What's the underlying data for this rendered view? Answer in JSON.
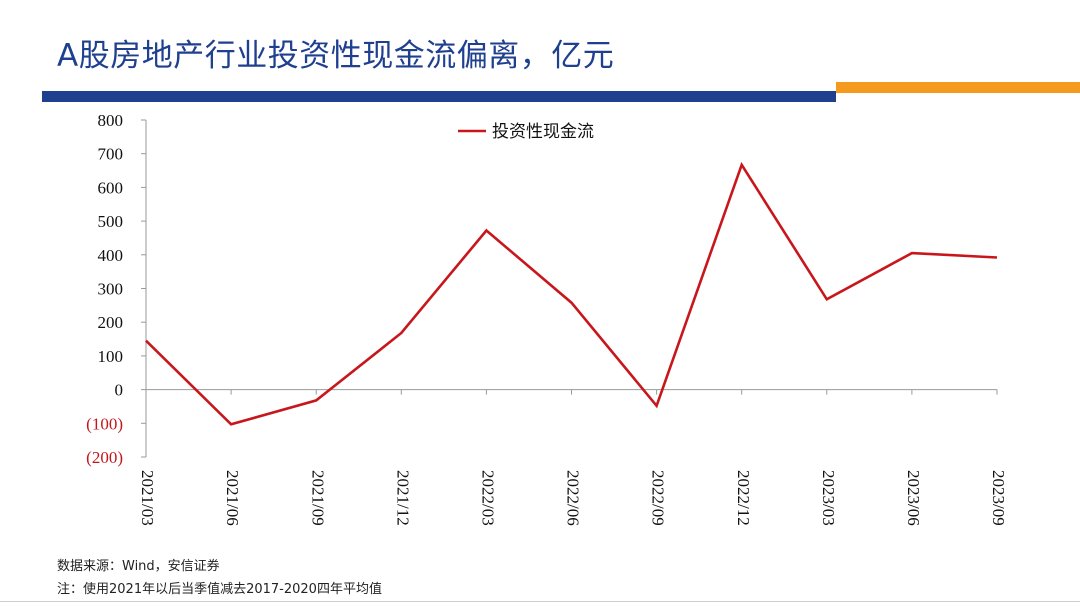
{
  "header": {
    "title": "A股房地产行业投资性现金流偏离，亿元"
  },
  "footer": {
    "source": "数据来源：Wind，安信证券",
    "note": "注：使用2021年以后当季值减去2017-2020四年平均值"
  },
  "colors": {
    "title": "#1f3f8f",
    "accent_blue": "#1f3f8f",
    "accent_orange": "#f39a1f",
    "series": "#c8171c",
    "negative_tick": "#c0181b"
  },
  "chart_data": {
    "type": "line",
    "categories": [
      "2021/03",
      "2021/06",
      "2021/09",
      "2021/12",
      "2022/03",
      "2022/06",
      "2022/09",
      "2022/12",
      "2023/03",
      "2023/06",
      "2023/09"
    ],
    "series": [
      {
        "name": "投资性现金流",
        "values": [
          145,
          -103,
          -32,
          168,
          472,
          258,
          -48,
          667,
          268,
          405,
          392
        ]
      }
    ],
    "ylim": [
      -200,
      800
    ],
    "yticks": [
      800,
      700,
      600,
      500,
      400,
      300,
      200,
      100,
      0,
      -100,
      -200
    ],
    "ytick_labels": [
      "800",
      "700",
      "600",
      "500",
      "400",
      "300",
      "200",
      "100",
      "0",
      "(100)",
      "(200)"
    ],
    "legend_position": "top-center",
    "grid": false
  }
}
